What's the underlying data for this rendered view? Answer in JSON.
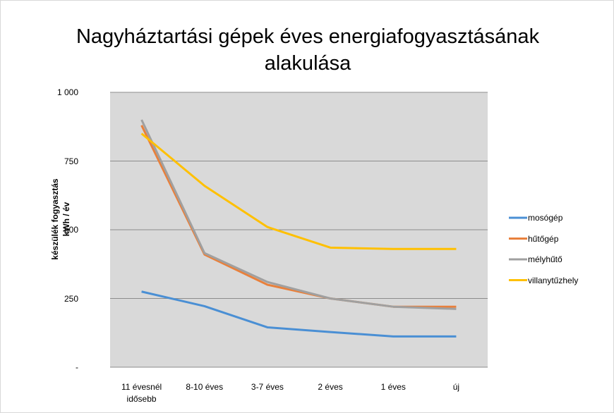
{
  "chart_data": {
    "type": "line",
    "title": "Nagyháztartási gépek éves energiafogyasztásának alakulása",
    "ylabel": "készülék fogyasztás kWh / év",
    "categories": [
      "11 évesnél idősebb",
      "8-10 éves",
      "3-7 éves",
      "2 éves",
      "1 éves",
      "új"
    ],
    "series": [
      {
        "name": "mosógép",
        "color": "#4a8fd4",
        "values": [
          275,
          222,
          145,
          128,
          112,
          112
        ]
      },
      {
        "name": "hűtőgép",
        "color": "#e8803c",
        "values": [
          880,
          410,
          300,
          250,
          220,
          220
        ]
      },
      {
        "name": "mélyhűtő",
        "color": "#a0a0a0",
        "values": [
          900,
          415,
          310,
          250,
          220,
          212
        ]
      },
      {
        "name": "villanytűzhely",
        "color": "#ffc000",
        "values": [
          850,
          660,
          510,
          435,
          430,
          430
        ]
      }
    ],
    "ylim": [
      0,
      1000
    ],
    "yticks": [
      {
        "value": 0,
        "label": "-"
      },
      250,
      500,
      750,
      {
        "value": 1000,
        "label": "1 000"
      }
    ],
    "grid": true,
    "legend": "right"
  }
}
